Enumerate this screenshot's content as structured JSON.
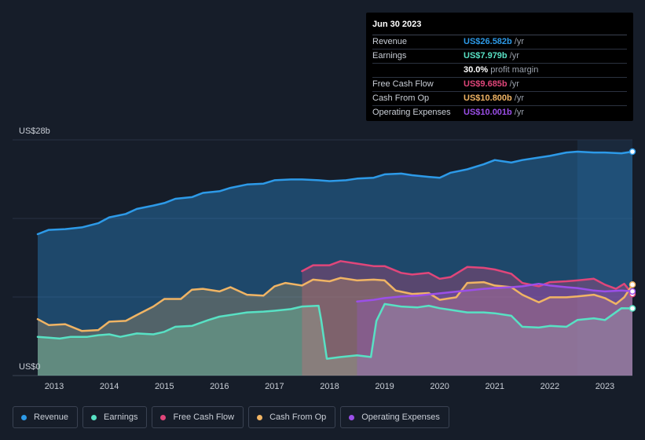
{
  "chart_data": {
    "type": "area",
    "ylabel_top": "US$28b",
    "ylabel_bottom": "US$0",
    "ylim": [
      0,
      28
    ],
    "x_ticks": [
      "2013",
      "2014",
      "2015",
      "2016",
      "2017",
      "2018",
      "2019",
      "2020",
      "2021",
      "2022",
      "2023"
    ],
    "x_range": [
      2012.7,
      2023.5
    ],
    "forecast_start": 2022.5,
    "series": [
      {
        "name": "Revenue",
        "color": "#2d9ae8",
        "points": [
          [
            2012.7,
            16.8
          ],
          [
            2012.9,
            17.3
          ],
          [
            2013.2,
            17.4
          ],
          [
            2013.5,
            17.6
          ],
          [
            2013.8,
            18.1
          ],
          [
            2014.0,
            18.8
          ],
          [
            2014.3,
            19.2
          ],
          [
            2014.5,
            19.8
          ],
          [
            2014.8,
            20.2
          ],
          [
            2015.0,
            20.5
          ],
          [
            2015.2,
            21.0
          ],
          [
            2015.5,
            21.2
          ],
          [
            2015.7,
            21.7
          ],
          [
            2016.0,
            21.9
          ],
          [
            2016.2,
            22.3
          ],
          [
            2016.5,
            22.7
          ],
          [
            2016.8,
            22.8
          ],
          [
            2017.0,
            23.2
          ],
          [
            2017.3,
            23.3
          ],
          [
            2017.5,
            23.3
          ],
          [
            2017.8,
            23.2
          ],
          [
            2018.0,
            23.1
          ],
          [
            2018.3,
            23.2
          ],
          [
            2018.5,
            23.4
          ],
          [
            2018.8,
            23.5
          ],
          [
            2019.0,
            23.9
          ],
          [
            2019.3,
            24.0
          ],
          [
            2019.5,
            23.8
          ],
          [
            2019.8,
            23.6
          ],
          [
            2020.0,
            23.5
          ],
          [
            2020.2,
            24.1
          ],
          [
            2020.5,
            24.5
          ],
          [
            2020.8,
            25.1
          ],
          [
            2021.0,
            25.6
          ],
          [
            2021.3,
            25.3
          ],
          [
            2021.5,
            25.6
          ],
          [
            2021.8,
            25.9
          ],
          [
            2022.0,
            26.1
          ],
          [
            2022.3,
            26.5
          ],
          [
            2022.5,
            26.6
          ],
          [
            2022.8,
            26.5
          ],
          [
            2023.0,
            26.5
          ],
          [
            2023.3,
            26.4
          ],
          [
            2023.5,
            26.6
          ]
        ]
      },
      {
        "name": "Earnings",
        "color": "#58e1c4",
        "points": [
          [
            2012.7,
            4.6
          ],
          [
            2012.9,
            4.5
          ],
          [
            2013.1,
            4.4
          ],
          [
            2013.3,
            4.6
          ],
          [
            2013.6,
            4.6
          ],
          [
            2013.8,
            4.8
          ],
          [
            2014.0,
            4.9
          ],
          [
            2014.2,
            4.6
          ],
          [
            2014.5,
            5.0
          ],
          [
            2014.8,
            4.9
          ],
          [
            2015.0,
            5.2
          ],
          [
            2015.2,
            5.8
          ],
          [
            2015.5,
            5.9
          ],
          [
            2015.8,
            6.6
          ],
          [
            2016.0,
            7.0
          ],
          [
            2016.3,
            7.3
          ],
          [
            2016.5,
            7.5
          ],
          [
            2016.8,
            7.6
          ],
          [
            2017.0,
            7.7
          ],
          [
            2017.3,
            7.9
          ],
          [
            2017.5,
            8.2
          ],
          [
            2017.8,
            8.3
          ],
          [
            2017.85,
            6.5
          ],
          [
            2017.95,
            2.0
          ],
          [
            2018.2,
            2.2
          ],
          [
            2018.5,
            2.4
          ],
          [
            2018.75,
            2.2
          ],
          [
            2018.85,
            6.5
          ],
          [
            2019.0,
            8.5
          ],
          [
            2019.3,
            8.2
          ],
          [
            2019.6,
            8.1
          ],
          [
            2019.8,
            8.3
          ],
          [
            2020.0,
            8.0
          ],
          [
            2020.2,
            7.8
          ],
          [
            2020.5,
            7.5
          ],
          [
            2020.8,
            7.5
          ],
          [
            2021.0,
            7.4
          ],
          [
            2021.3,
            7.1
          ],
          [
            2021.5,
            5.8
          ],
          [
            2021.8,
            5.7
          ],
          [
            2022.0,
            5.9
          ],
          [
            2022.3,
            5.8
          ],
          [
            2022.5,
            6.6
          ],
          [
            2022.8,
            6.8
          ],
          [
            2023.0,
            6.6
          ],
          [
            2023.3,
            8.0
          ],
          [
            2023.5,
            7.979
          ]
        ]
      },
      {
        "name": "Free Cash Flow",
        "color": "#e0467a",
        "points": [
          [
            2017.5,
            12.4
          ],
          [
            2017.7,
            13.1
          ],
          [
            2018.0,
            13.1
          ],
          [
            2018.2,
            13.6
          ],
          [
            2018.5,
            13.3
          ],
          [
            2018.8,
            13.0
          ],
          [
            2019.0,
            13.0
          ],
          [
            2019.3,
            12.2
          ],
          [
            2019.5,
            12.0
          ],
          [
            2019.8,
            12.2
          ],
          [
            2020.0,
            11.5
          ],
          [
            2020.2,
            11.7
          ],
          [
            2020.5,
            12.9
          ],
          [
            2020.8,
            12.8
          ],
          [
            2021.0,
            12.6
          ],
          [
            2021.3,
            12.1
          ],
          [
            2021.5,
            11.0
          ],
          [
            2021.8,
            10.6
          ],
          [
            2022.0,
            11.1
          ],
          [
            2022.3,
            11.2
          ],
          [
            2022.5,
            11.3
          ],
          [
            2022.8,
            11.5
          ],
          [
            2023.0,
            10.8
          ],
          [
            2023.2,
            10.3
          ],
          [
            2023.35,
            10.9
          ],
          [
            2023.5,
            9.685
          ]
        ]
      },
      {
        "name": "Cash From Op",
        "color": "#f0b464",
        "points": [
          [
            2012.7,
            6.7
          ],
          [
            2012.9,
            6.0
          ],
          [
            2013.2,
            6.1
          ],
          [
            2013.5,
            5.3
          ],
          [
            2013.8,
            5.4
          ],
          [
            2014.0,
            6.4
          ],
          [
            2014.3,
            6.5
          ],
          [
            2014.5,
            7.2
          ],
          [
            2014.8,
            8.2
          ],
          [
            2015.0,
            9.1
          ],
          [
            2015.3,
            9.1
          ],
          [
            2015.5,
            10.2
          ],
          [
            2015.7,
            10.3
          ],
          [
            2016.0,
            10.0
          ],
          [
            2016.2,
            10.5
          ],
          [
            2016.5,
            9.6
          ],
          [
            2016.8,
            9.5
          ],
          [
            2017.0,
            10.6
          ],
          [
            2017.2,
            11.0
          ],
          [
            2017.5,
            10.7
          ],
          [
            2017.7,
            11.4
          ],
          [
            2018.0,
            11.2
          ],
          [
            2018.2,
            11.6
          ],
          [
            2018.5,
            11.3
          ],
          [
            2018.8,
            11.4
          ],
          [
            2019.0,
            11.3
          ],
          [
            2019.2,
            10.1
          ],
          [
            2019.5,
            9.7
          ],
          [
            2019.8,
            9.8
          ],
          [
            2020.0,
            9.0
          ],
          [
            2020.3,
            9.3
          ],
          [
            2020.5,
            11.0
          ],
          [
            2020.8,
            11.1
          ],
          [
            2021.0,
            10.7
          ],
          [
            2021.3,
            10.5
          ],
          [
            2021.5,
            9.6
          ],
          [
            2021.8,
            8.7
          ],
          [
            2022.0,
            9.3
          ],
          [
            2022.3,
            9.3
          ],
          [
            2022.5,
            9.4
          ],
          [
            2022.8,
            9.6
          ],
          [
            2023.0,
            9.2
          ],
          [
            2023.2,
            8.5
          ],
          [
            2023.35,
            9.3
          ],
          [
            2023.5,
            10.8
          ]
        ]
      },
      {
        "name": "Operating Expenses",
        "color": "#9b4fe8",
        "points": [
          [
            2018.5,
            8.8
          ],
          [
            2018.8,
            9.0
          ],
          [
            2019.0,
            9.2
          ],
          [
            2019.3,
            9.4
          ],
          [
            2019.6,
            9.5
          ],
          [
            2019.9,
            9.7
          ],
          [
            2020.2,
            9.9
          ],
          [
            2020.5,
            10.1
          ],
          [
            2020.8,
            10.3
          ],
          [
            2021.0,
            10.4
          ],
          [
            2021.3,
            10.5
          ],
          [
            2021.5,
            10.6
          ],
          [
            2021.8,
            10.9
          ],
          [
            2022.0,
            10.7
          ],
          [
            2022.3,
            10.5
          ],
          [
            2022.5,
            10.4
          ],
          [
            2022.8,
            10.1
          ],
          [
            2023.0,
            10.0
          ],
          [
            2023.3,
            10.1
          ],
          [
            2023.5,
            10.001
          ]
        ]
      }
    ]
  },
  "tooltip": {
    "date": "Jun 30 2023",
    "rows": [
      {
        "label": "Revenue",
        "value": "US$26.582b",
        "unit": "/yr",
        "color": "#2d9ae8"
      },
      {
        "label": "Earnings",
        "value": "US$7.979b",
        "unit": "/yr",
        "color": "#58e1c4"
      },
      {
        "label": "",
        "value": "30.0%",
        "unit": "profit margin",
        "color": "#ffffff"
      },
      {
        "label": "Free Cash Flow",
        "value": "US$9.685b",
        "unit": "/yr",
        "color": "#e0467a"
      },
      {
        "label": "Cash From Op",
        "value": "US$10.800b",
        "unit": "/yr",
        "color": "#f0b464"
      },
      {
        "label": "Operating Expenses",
        "value": "US$10.001b",
        "unit": "/yr",
        "color": "#9b4fe8"
      }
    ]
  },
  "legend": [
    {
      "label": "Revenue",
      "color": "#2d9ae8"
    },
    {
      "label": "Earnings",
      "color": "#58e1c4"
    },
    {
      "label": "Free Cash Flow",
      "color": "#e0467a"
    },
    {
      "label": "Cash From Op",
      "color": "#f0b464"
    },
    {
      "label": "Operating Expenses",
      "color": "#9b4fe8"
    }
  ]
}
